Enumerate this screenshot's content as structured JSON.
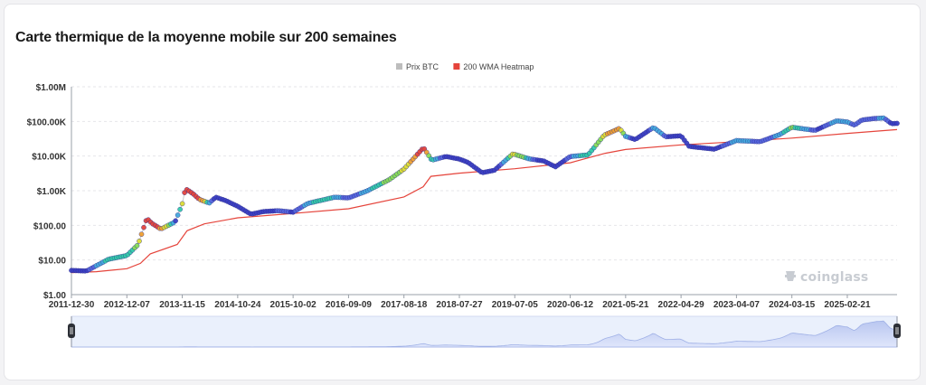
{
  "page": {
    "title": "Carte thermique de la moyenne mobile sur 200 semaines",
    "watermark": "coinglass"
  },
  "chart_data": {
    "type": "scatter",
    "title": "Carte thermique de la moyenne mobile sur 200 semaines",
    "yscale": "log",
    "ylim": [
      1,
      1000000
    ],
    "xlim": [
      "2011-12-30",
      "2025-12-26"
    ],
    "grid": "horizontal dashed",
    "legend_position": "top-center",
    "y_tick_labels": [
      "$1.00",
      "$10.00",
      "$100.00",
      "$1.00K",
      "$10.00K",
      "$100.00K",
      "$1.00M"
    ],
    "x_tick_labels": [
      "2011-12-30",
      "2012-12-07",
      "2013-11-15",
      "2014-10-24",
      "2015-10-02",
      "2016-09-09",
      "2017-08-18",
      "2018-07-27",
      "2019-07-05",
      "2020-06-12",
      "2021-05-21",
      "2022-04-29",
      "2023-04-07",
      "2024-03-15",
      "2025-02-21"
    ],
    "legend": [
      {
        "label": "Prix BTC",
        "color": "#bdbdbd"
      },
      {
        "label": "200 WMA Heatmap",
        "color": "#e5443b"
      }
    ],
    "heat_colors": [
      "#3b3fc4",
      "#5566dd",
      "#44aadd",
      "#33ccaa",
      "#88dd55",
      "#dddd33",
      "#f0a030",
      "#e5443b"
    ],
    "series": [
      {
        "name": "Prix BTC",
        "points": [
          [
            "2011-12-30",
            5
          ],
          [
            "2012-04-01",
            4.8
          ],
          [
            "2012-08-15",
            10.5
          ],
          [
            "2012-12-07",
            13.4
          ],
          [
            "2013-02-15",
            28
          ],
          [
            "2013-04-10",
            160
          ],
          [
            "2013-05-10",
            115
          ],
          [
            "2013-07-05",
            78
          ],
          [
            "2013-10-01",
            125
          ],
          [
            "2013-11-15",
            420
          ],
          [
            "2013-12-04",
            1150
          ],
          [
            "2014-01-20",
            820
          ],
          [
            "2014-03-01",
            560
          ],
          [
            "2014-05-01",
            440
          ],
          [
            "2014-06-10",
            650
          ],
          [
            "2014-08-10",
            520
          ],
          [
            "2014-10-24",
            355
          ],
          [
            "2015-01-14",
            210
          ],
          [
            "2015-04-01",
            250
          ],
          [
            "2015-07-01",
            265
          ],
          [
            "2015-10-02",
            240
          ],
          [
            "2016-01-01",
            430
          ],
          [
            "2016-06-15",
            650
          ],
          [
            "2016-09-09",
            620
          ],
          [
            "2017-01-01",
            980
          ],
          [
            "2017-05-20",
            2100
          ],
          [
            "2017-08-18",
            4200
          ],
          [
            "2017-12-17",
            17500
          ],
          [
            "2018-02-06",
            7600
          ],
          [
            "2018-05-05",
            9700
          ],
          [
            "2018-07-27",
            8200
          ],
          [
            "2018-09-20",
            6500
          ],
          [
            "2018-12-15",
            3300
          ],
          [
            "2019-03-01",
            3900
          ],
          [
            "2019-06-26",
            11900
          ],
          [
            "2019-07-05",
            11200
          ],
          [
            "2019-10-01",
            8300
          ],
          [
            "2020-01-01",
            7200
          ],
          [
            "2020-03-13",
            4900
          ],
          [
            "2020-06-12",
            9700
          ],
          [
            "2020-10-01",
            10800
          ],
          [
            "2021-01-08",
            40000
          ],
          [
            "2021-04-14",
            63000
          ],
          [
            "2021-05-21",
            37000
          ],
          [
            "2021-07-20",
            30000
          ],
          [
            "2021-11-10",
            67000
          ],
          [
            "2022-01-24",
            36000
          ],
          [
            "2022-04-29",
            38500
          ],
          [
            "2022-06-18",
            19000
          ],
          [
            "2022-11-21",
            15800
          ],
          [
            "2023-04-07",
            28000
          ],
          [
            "2023-09-01",
            26000
          ],
          [
            "2024-01-01",
            42000
          ],
          [
            "2024-03-15",
            68000
          ],
          [
            "2024-08-05",
            55000
          ],
          [
            "2024-12-17",
            104000
          ],
          [
            "2025-02-21",
            96000
          ],
          [
            "2025-04-07",
            78000
          ],
          [
            "2025-05-22",
            110000
          ],
          [
            "2025-08-14",
            122000
          ],
          [
            "2025-10-06",
            125000
          ],
          [
            "2025-11-21",
            86000
          ],
          [
            "2025-12-26",
            88000
          ]
        ]
      },
      {
        "name": "200 WMA Heatmap",
        "points": [
          [
            "2011-12-30",
            4.3
          ],
          [
            "2012-06-01",
            4.6
          ],
          [
            "2012-12-07",
            5.6
          ],
          [
            "2013-03-01",
            8
          ],
          [
            "2013-05-01",
            15
          ],
          [
            "2013-10-15",
            28
          ],
          [
            "2013-12-15",
            70
          ],
          [
            "2014-04-01",
            110
          ],
          [
            "2014-10-24",
            165
          ],
          [
            "2015-10-02",
            220
          ],
          [
            "2016-09-09",
            300
          ],
          [
            "2017-08-18",
            660
          ],
          [
            "2017-12-15",
            1300
          ],
          [
            "2018-02-01",
            2600
          ],
          [
            "2018-07-27",
            3200
          ],
          [
            "2019-07-05",
            4300
          ],
          [
            "2020-06-12",
            6400
          ],
          [
            "2021-01-15",
            12000
          ],
          [
            "2021-05-21",
            15500
          ],
          [
            "2022-04-29",
            21000
          ],
          [
            "2023-04-07",
            26000
          ],
          [
            "2024-03-15",
            33000
          ],
          [
            "2025-02-21",
            45000
          ],
          [
            "2025-12-26",
            58000
          ]
        ]
      }
    ]
  }
}
